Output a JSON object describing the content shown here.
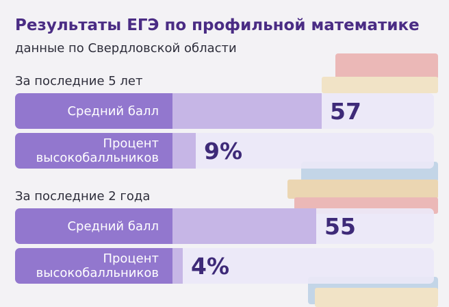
{
  "header": {
    "title": "Результаты ЕГЭ по профильной математике",
    "subtitle": "данные по Свердловской области"
  },
  "chart_data": {
    "type": "bar",
    "title": "Результаты ЕГЭ по профильной математике",
    "subtitle": "данные по Свердловской области",
    "colors": {
      "label_bg": "#9277ce",
      "bar_fill": "#c6b6e6",
      "track": "#ece8f7",
      "value_text": "#3e2a78",
      "title": "#4a2c84"
    },
    "groups": [
      {
        "title": "За последние 5 лет",
        "rows": [
          {
            "label": "Средний балл",
            "value": 57,
            "display": "57",
            "max": 100
          },
          {
            "label": "Процент\nвысокобалльников",
            "value": 9,
            "display": "9%",
            "max": 100
          }
        ]
      },
      {
        "title": "За последние 2 года",
        "rows": [
          {
            "label": "Средний балл",
            "value": 55,
            "display": "55",
            "max": 100
          },
          {
            "label": "Процент\nвысокобалльников",
            "value": 4,
            "display": "4%",
            "max": 100
          }
        ]
      }
    ]
  }
}
